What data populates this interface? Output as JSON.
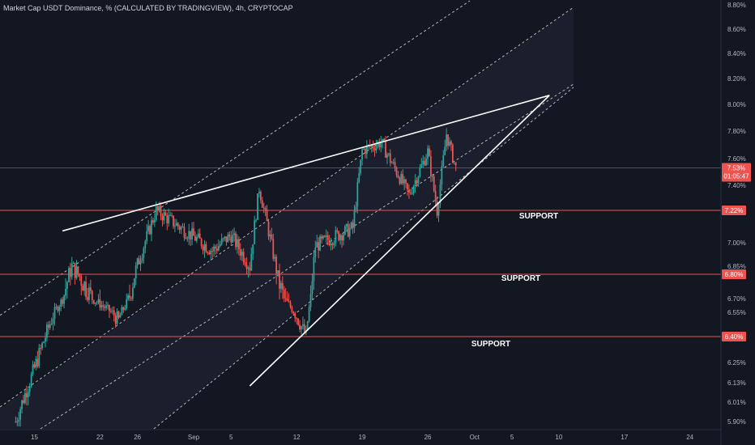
{
  "chart_data": {
    "type": "candlestick",
    "title": "Market Cap USDT Dominance, % (CALCULATED BY TRADINGVIEW), 4h, CRYPTOCAP",
    "x_ticks": [
      "15",
      "22",
      "26",
      "Sep",
      "5",
      "12",
      "19",
      "26",
      "Oct",
      "5",
      "10",
      "17",
      "24"
    ],
    "y_ticks": [
      "8.80%",
      "8.60%",
      "8.40%",
      "8.20%",
      "8.00%",
      "7.80%",
      "7.60%",
      "7.40%",
      "7.00%",
      "6.85%",
      "6.70%",
      "6.55%",
      "6.25%",
      "6.13%",
      "6.01%",
      "5.90%"
    ],
    "ylim": [
      5.89,
      8.82
    ],
    "price_tag": {
      "value": "7.53%",
      "countdown": "01:05:47"
    },
    "support_levels": [
      {
        "value": 7.22,
        "tag": "7.22%",
        "label": "SUPPORT"
      },
      {
        "value": 6.8,
        "tag": "6.80%",
        "label": "SUPPORT"
      },
      {
        "value": 6.4,
        "tag": "6.40%",
        "label": "SUPPORT"
      }
    ],
    "trendlines": [
      {
        "name": "rising-wedge-upper",
        "from": [
          "Aug 18",
          7.08
        ],
        "to": [
          "Oct 9",
          8.07
        ]
      },
      {
        "name": "rising-wedge-lower",
        "from": [
          "Sep 7",
          6.11
        ],
        "to": [
          "Oct 9",
          8.07
        ]
      }
    ],
    "key_points": [
      {
        "date": "Aug 13",
        "value": 5.9
      },
      {
        "date": "Aug 19",
        "value": 6.85
      },
      {
        "date": "Aug 24",
        "value": 6.5
      },
      {
        "date": "Aug 28",
        "value": 7.22
      },
      {
        "date": "Sep 3",
        "value": 6.95
      },
      {
        "date": "Sep 5",
        "value": 7.05
      },
      {
        "date": "Sep 7",
        "value": 6.85
      },
      {
        "date": "Sep 8",
        "value": 7.38
      },
      {
        "date": "Sep 10",
        "value": 6.78
      },
      {
        "date": "Sep 13",
        "value": 6.4
      },
      {
        "date": "Sep 14",
        "value": 6.98
      },
      {
        "date": "Sep 18",
        "value": 7.1
      },
      {
        "date": "Sep 19",
        "value": 7.66
      },
      {
        "date": "Sep 21",
        "value": 7.72
      },
      {
        "date": "Sep 24",
        "value": 7.33
      },
      {
        "date": "Sep 26",
        "value": 7.65
      },
      {
        "date": "Sep 27",
        "value": 7.22
      },
      {
        "date": "Sep 28",
        "value": 7.78
      },
      {
        "date": "Sep 29",
        "value": 7.53
      }
    ],
    "colors": {
      "up": "#26a69a",
      "down": "#ef5350",
      "support_line": "#ef5350",
      "trendline": "#ffffff",
      "channel": "#c8c8c8",
      "background": "#131722"
    }
  }
}
